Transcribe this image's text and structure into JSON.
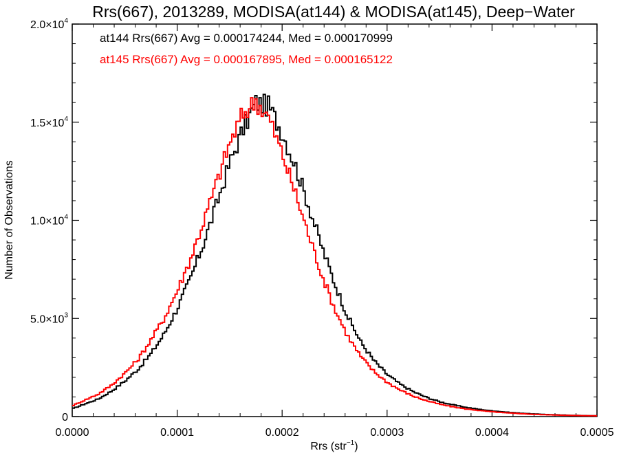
{
  "chart_data": {
    "type": "line",
    "title": "Rrs(667), 2013289, MODISA(at144) & MODISA(at145), Deep−Water",
    "xlabel_main": "Rrs (str",
    "xlabel_sup": "−1",
    "xlabel_close": ")",
    "ylabel": "Number of Observations",
    "xlim": [
      0.0,
      0.0005
    ],
    "ylim": [
      0,
      20000
    ],
    "x_ticks": [
      0.0,
      0.0001,
      0.0002,
      0.0003,
      0.0004,
      0.0005
    ],
    "x_tick_labels": [
      "0.0000",
      "0.0001",
      "0.0002",
      "0.0003",
      "0.0004",
      "0.0005"
    ],
    "y_ticks": [
      {
        "value": 0,
        "mant": "0",
        "times": "",
        "exp": ""
      },
      {
        "value": 5000,
        "mant": "5.0",
        "times": "×10",
        "exp": "3"
      },
      {
        "value": 10000,
        "mant": "1.0",
        "times": "×10",
        "exp": "4"
      },
      {
        "value": 15000,
        "mant": "1.5",
        "times": "×10",
        "exp": "4"
      },
      {
        "value": 20000,
        "mant": "2.0",
        "times": "×10",
        "exp": "4"
      }
    ],
    "grid": false,
    "legend_position": "top-left",
    "annotations": [
      {
        "text": "at144 Rrs(667) Avg = 0.000174244, Med = 0.000170999",
        "color": "#000000"
      },
      {
        "text": "at145 Rrs(667) Avg = 0.000167895, Med = 0.000165122",
        "color": "#ff0000"
      }
    ],
    "series": [
      {
        "color": "#000000",
        "x": [
          0.0,
          1.25e-05,
          2.5e-05,
          3.75e-05,
          5e-05,
          6.25e-05,
          7.5e-05,
          8.75e-05,
          0.0001,
          0.0001125,
          0.000125,
          0.0001375,
          0.00015,
          0.0001625,
          0.000175,
          0.0001875,
          0.0002,
          0.0002125,
          0.000225,
          0.0002375,
          0.00025,
          0.0002625,
          0.000275,
          0.0002875,
          0.0003,
          0.0003125,
          0.000325,
          0.0003375,
          0.00035,
          0.0003625,
          0.000375,
          0.0003875,
          0.0004,
          0.0004125,
          0.000425,
          0.0004375,
          0.00045,
          0.0004625,
          0.000475,
          0.0004875,
          0.0005
        ],
        "y": [
          400,
          650,
          900,
          1300,
          1800,
          2400,
          3200,
          4200,
          5500,
          7000,
          8800,
          10800,
          12900,
          14600,
          16000,
          15800,
          14500,
          12800,
          10800,
          8700,
          6800,
          5100,
          3800,
          2850,
          2150,
          1650,
          1270,
          980,
          760,
          600,
          470,
          370,
          290,
          230,
          180,
          140,
          110,
          85,
          65,
          50,
          40
        ]
      },
      {
        "color": "#ff0000",
        "x": [
          0.0,
          1.25e-05,
          2.5e-05,
          3.75e-05,
          5e-05,
          6.25e-05,
          7.5e-05,
          8.75e-05,
          0.0001,
          0.0001125,
          0.000125,
          0.0001375,
          0.00015,
          0.0001625,
          0.000175,
          0.0001875,
          0.0002,
          0.0002125,
          0.000225,
          0.0002375,
          0.00025,
          0.0002625,
          0.000275,
          0.0002875,
          0.0003,
          0.0003125,
          0.000325,
          0.0003375,
          0.00035,
          0.0003625,
          0.000375,
          0.0003875,
          0.0004,
          0.0004125,
          0.000425,
          0.0004375,
          0.00045,
          0.0004625,
          0.000475,
          0.0004875,
          0.0005
        ],
        "y": [
          550,
          850,
          1150,
          1600,
          2200,
          2900,
          3900,
          5000,
          6400,
          8000,
          9900,
          11900,
          13900,
          15400,
          16100,
          15200,
          13400,
          11400,
          9300,
          7300,
          5500,
          4100,
          3050,
          2300,
          1750,
          1350,
          1040,
          810,
          630,
          500,
          390,
          310,
          245,
          195,
          155,
          120,
          95,
          75,
          55,
          45,
          35
        ]
      }
    ]
  }
}
